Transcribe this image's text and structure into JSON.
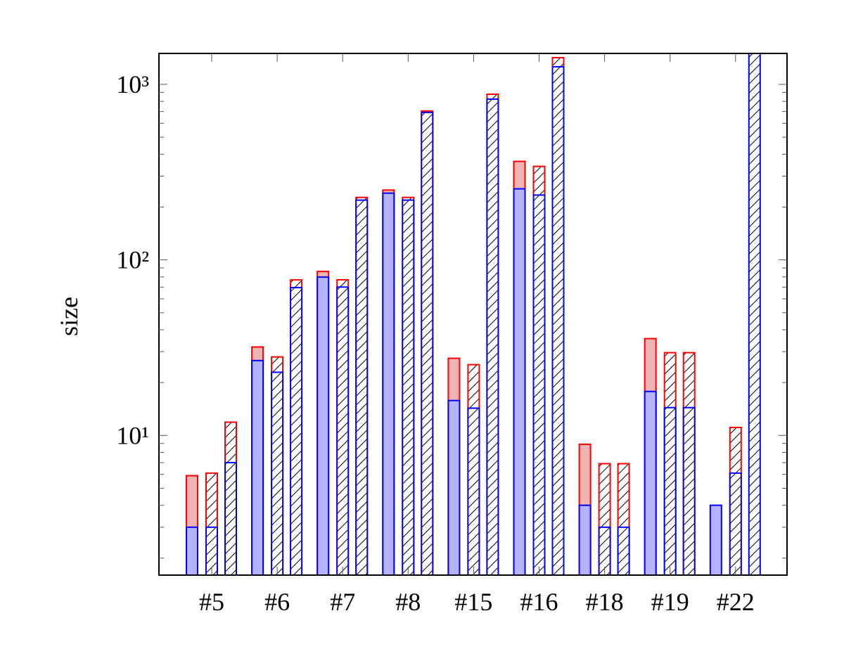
{
  "chart_data": {
    "type": "bar",
    "log_y": true,
    "y_label": "size",
    "categories": [
      "#5",
      "#6",
      "#7",
      "#8",
      "#15",
      "#16",
      "#18",
      "#19",
      "#22"
    ],
    "ylim": [
      1.6,
      1500
    ],
    "yticks": [
      {
        "value": 10,
        "label": "10¹"
      },
      {
        "value": 100,
        "label": "10²"
      },
      {
        "value": 1000,
        "label": "10³"
      }
    ],
    "minor_yticks": [
      2,
      3,
      4,
      5,
      6,
      7,
      8,
      9,
      20,
      30,
      40,
      50,
      60,
      70,
      80,
      90,
      200,
      300,
      400,
      500,
      600,
      700,
      800,
      900
    ],
    "series": [
      {
        "color": "#0000ff",
        "fill": "#b3b3ff",
        "hatch": false,
        "outer_color": "#ff0000",
        "outer_fill": "#f0b3b3",
        "values": [
          3.0,
          26.7,
          79.8,
          240,
          15.8,
          254,
          4.0,
          17.8,
          4.0
        ],
        "outer_values": [
          5.9,
          31.9,
          85.9,
          250,
          27.5,
          364,
          8.9,
          35.6,
          null
        ]
      },
      {
        "color": "#0000ff",
        "fill": "#b3b3ff",
        "hatch": true,
        "outer_color": "#ff0000",
        "outer_fill": "#f0b3b3",
        "values": [
          3.0,
          22.9,
          70,
          219,
          14.3,
          234,
          3.0,
          14.4,
          6.1
        ],
        "outer_values": [
          6.1,
          28,
          77,
          227,
          25.3,
          341,
          6.9,
          29.6,
          11.1
        ]
      },
      {
        "color": "#0000ff",
        "fill": "#b3b3ff",
        "hatch": true,
        "outer_color": "#ff0000",
        "outer_fill": "#f0b3b3",
        "values": [
          7.0,
          69.5,
          219,
          692,
          824,
          1259,
          3.0,
          14.4,
          1600
        ],
        "outer_values": [
          11.9,
          76.9,
          227,
          705,
          879,
          1419,
          6.9,
          29.6,
          null
        ]
      }
    ]
  }
}
